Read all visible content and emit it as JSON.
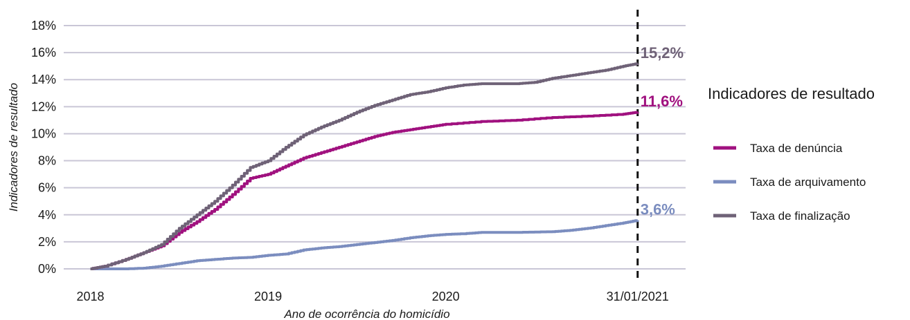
{
  "chart_data": {
    "type": "line",
    "xlabel": "Ano de ocorrência do homicídio",
    "ylabel": "Indicadores de resultado",
    "x_tick_labels": [
      "2018",
      "2019",
      "2020",
      "31/01/2021"
    ],
    "x_ticks": [
      2018,
      2019,
      2020,
      2021.08
    ],
    "x_range": [
      2017.85,
      2021.35
    ],
    "y_tick_labels": [
      "0%",
      "2%",
      "4%",
      "6%",
      "8%",
      "10%",
      "12%",
      "14%",
      "16%",
      "18%"
    ],
    "ylim": [
      0,
      18
    ],
    "y_unit": "%",
    "grid": "horizontal",
    "reference_line": {
      "x": 2021.08,
      "style": "dashed"
    },
    "legend": {
      "title": "Indicadores de resultado",
      "placement": "right"
    },
    "series": [
      {
        "name": "Taxa de denúncia",
        "color": "#a0117f",
        "end_label": "11,6%",
        "points": [
          [
            2018.0,
            0
          ],
          [
            2018.08,
            0.2
          ],
          [
            2018.2,
            0.7
          ],
          [
            2018.3,
            1.2
          ],
          [
            2018.4,
            1.7
          ],
          [
            2018.5,
            2.7
          ],
          [
            2018.6,
            3.5
          ],
          [
            2018.7,
            4.4
          ],
          [
            2018.8,
            5.5
          ],
          [
            2018.9,
            6.7
          ],
          [
            2019.0,
            7.0
          ],
          [
            2019.1,
            7.6
          ],
          [
            2019.2,
            8.2
          ],
          [
            2019.3,
            8.6
          ],
          [
            2019.4,
            9.0
          ],
          [
            2019.5,
            9.4
          ],
          [
            2019.6,
            9.8
          ],
          [
            2019.7,
            10.1
          ],
          [
            2019.8,
            10.3
          ],
          [
            2019.9,
            10.5
          ],
          [
            2020.0,
            10.7
          ],
          [
            2020.2,
            10.9
          ],
          [
            2020.4,
            11.0
          ],
          [
            2020.6,
            11.2
          ],
          [
            2020.8,
            11.3
          ],
          [
            2021.0,
            11.45
          ],
          [
            2021.08,
            11.6
          ]
        ]
      },
      {
        "name": "Taxa de arquivamento",
        "color": "#7b8dbf",
        "end_label": "3,6%",
        "points": [
          [
            2018.0,
            0
          ],
          [
            2018.2,
            0
          ],
          [
            2018.3,
            0.05
          ],
          [
            2018.4,
            0.2
          ],
          [
            2018.5,
            0.4
          ],
          [
            2018.6,
            0.6
          ],
          [
            2018.7,
            0.7
          ],
          [
            2018.8,
            0.8
          ],
          [
            2018.9,
            0.85
          ],
          [
            2019.0,
            1.0
          ],
          [
            2019.1,
            1.1
          ],
          [
            2019.2,
            1.4
          ],
          [
            2019.3,
            1.55
          ],
          [
            2019.4,
            1.65
          ],
          [
            2019.5,
            1.8
          ],
          [
            2019.6,
            1.95
          ],
          [
            2019.7,
            2.1
          ],
          [
            2019.8,
            2.3
          ],
          [
            2019.9,
            2.45
          ],
          [
            2020.0,
            2.55
          ],
          [
            2020.1,
            2.6
          ],
          [
            2020.2,
            2.7
          ],
          [
            2020.4,
            2.7
          ],
          [
            2020.6,
            2.75
          ],
          [
            2020.7,
            2.85
          ],
          [
            2020.8,
            3.0
          ],
          [
            2020.9,
            3.2
          ],
          [
            2021.0,
            3.4
          ],
          [
            2021.08,
            3.6
          ]
        ]
      },
      {
        "name": "Taxa de finalização",
        "color": "#6f6277",
        "end_label": "15,2%",
        "points": [
          [
            2018.0,
            0
          ],
          [
            2018.08,
            0.2
          ],
          [
            2018.2,
            0.7
          ],
          [
            2018.3,
            1.2
          ],
          [
            2018.4,
            1.8
          ],
          [
            2018.5,
            3.0
          ],
          [
            2018.6,
            4.0
          ],
          [
            2018.7,
            5.0
          ],
          [
            2018.8,
            6.2
          ],
          [
            2018.9,
            7.5
          ],
          [
            2019.0,
            8.0
          ],
          [
            2019.1,
            9.0
          ],
          [
            2019.2,
            9.9
          ],
          [
            2019.3,
            10.5
          ],
          [
            2019.4,
            11.0
          ],
          [
            2019.5,
            11.6
          ],
          [
            2019.6,
            12.1
          ],
          [
            2019.7,
            12.5
          ],
          [
            2019.8,
            12.9
          ],
          [
            2019.9,
            13.1
          ],
          [
            2020.0,
            13.4
          ],
          [
            2020.1,
            13.6
          ],
          [
            2020.2,
            13.7
          ],
          [
            2020.4,
            13.7
          ],
          [
            2020.5,
            13.8
          ],
          [
            2020.6,
            14.1
          ],
          [
            2020.7,
            14.3
          ],
          [
            2020.8,
            14.5
          ],
          [
            2020.9,
            14.7
          ],
          [
            2021.0,
            15.0
          ],
          [
            2021.08,
            15.2
          ]
        ]
      }
    ]
  }
}
